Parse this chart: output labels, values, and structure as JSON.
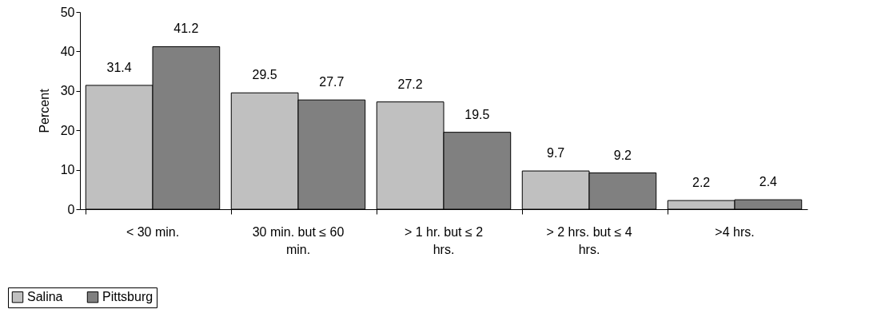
{
  "chart_data": {
    "type": "bar",
    "ylabel": "Percent",
    "categories": [
      "< 30 min.",
      "30 min. but ≤ 60 min.",
      "> 1 hr. but ≤ 2 hrs.",
      "> 2 hrs. but ≤ 4 hrs.",
      ">4 hrs."
    ],
    "series": [
      {
        "name": "Salina",
        "color": "#c0c0c0",
        "values": [
          31.4,
          29.5,
          27.2,
          9.7,
          2.2
        ]
      },
      {
        "name": "Pittsburg",
        "color": "#808080",
        "values": [
          41.2,
          27.7,
          19.5,
          9.2,
          2.4
        ]
      }
    ],
    "ylim": [
      0,
      50
    ],
    "yticks": [
      0,
      10,
      20,
      30,
      40,
      50
    ],
    "grid": false,
    "legend": "bottom left",
    "data_labels": true
  }
}
